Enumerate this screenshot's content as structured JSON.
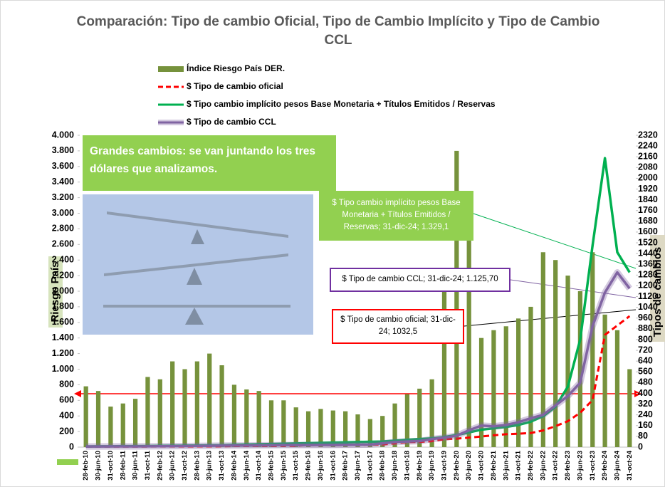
{
  "chart_data": {
    "type": "combo",
    "title": "Comparación: Tipo de cambio Oficial, Tipo de Cambio Implícito y Tipo de Cambio CCL",
    "y_label": "Riesgo País",
    "y2_label": "Tipos de cambios",
    "categories": [
      "28-feb-10",
      "30-jun-10",
      "31-oct-10",
      "28-feb-11",
      "30-jun-11",
      "31-oct-11",
      "29-feb-12",
      "30-jun-12",
      "31-oct-12",
      "28-feb-13",
      "30-jun-13",
      "31-oct-13",
      "28-feb-14",
      "30-jun-14",
      "31-oct-14",
      "28-feb-15",
      "30-jun-15",
      "31-oct-15",
      "29-feb-16",
      "30-jun-16",
      "31-oct-16",
      "28-feb-17",
      "30-jun-17",
      "31-oct-17",
      "28-feb-18",
      "30-jun-18",
      "31-oct-18",
      "28-feb-19",
      "30-jun-19",
      "31-oct-19",
      "29-feb-20",
      "30-jun-20",
      "31-oct-20",
      "28-feb-21",
      "30-jun-21",
      "31-oct-21",
      "28-feb-22",
      "30-jun-22",
      "31-oct-22",
      "28-feb-23",
      "30-jun-23",
      "31-oct-23",
      "29-feb-24",
      "30-jun-24",
      "31-oct-24"
    ],
    "series": [
      {
        "name": "Índice Riesgo País DER.",
        "type": "bar",
        "axis": "y",
        "color": "#76923c",
        "values": [
          780,
          720,
          520,
          560,
          620,
          900,
          870,
          1100,
          1000,
          1100,
          1200,
          1050,
          800,
          740,
          720,
          600,
          600,
          510,
          460,
          490,
          470,
          460,
          420,
          360,
          400,
          560,
          680,
          750,
          870,
          2300,
          3800,
          2700,
          1400,
          1500,
          1550,
          1650,
          1800,
          2500,
          2400,
          2200,
          2000,
          2500,
          1700,
          1500,
          1000
        ]
      },
      {
        "name": "$ Tipo de cambio oficial",
        "type": "line",
        "axis": "y2",
        "color": "#ff0000",
        "dashed": true,
        "values": [
          3.9,
          3.9,
          4,
          4.1,
          4.1,
          4.3,
          4.4,
          4.5,
          4.7,
          5,
          5.3,
          5.8,
          7.9,
          8.1,
          8.5,
          8.7,
          9.1,
          9.6,
          15.5,
          15,
          15.2,
          15.6,
          17,
          17.9,
          20,
          28,
          37,
          39,
          44,
          59,
          63,
          71,
          79,
          88,
          96,
          100,
          105,
          124,
          156,
          193,
          256,
          350,
          835,
          905,
          975
        ]
      },
      {
        "name": "$ Tipo cambio implícito pesos Base Monetaria + Títulos Emitidos / Reservas",
        "type": "line",
        "axis": "y2",
        "color": "#00b050",
        "values": [
          5,
          6,
          6,
          7,
          7,
          8,
          9,
          10,
          11,
          12,
          13,
          14,
          17,
          19,
          21,
          23,
          25,
          27,
          30,
          32,
          34,
          36,
          38,
          40,
          42,
          48,
          55,
          60,
          65,
          75,
          90,
          110,
          130,
          140,
          150,
          165,
          190,
          230,
          300,
          450,
          800,
          1500,
          2150,
          1450,
          1300
        ]
      },
      {
        "name": "$ Tipo de cambio CCL",
        "type": "line",
        "axis": "y2",
        "color": "#8064a2",
        "values": [
          4.5,
          4.8,
          5,
          5.2,
          5.5,
          6,
          6.5,
          7,
          8,
          9,
          10,
          11,
          12,
          12,
          13,
          14,
          15,
          15,
          15.5,
          16,
          16,
          17,
          18,
          19,
          28,
          38,
          42,
          45,
          60,
          70,
          85,
          125,
          160,
          155,
          165,
          185,
          215,
          240,
          310,
          380,
          480,
          900,
          1150,
          1300,
          1180
        ]
      }
    ],
    "ylim": [
      0,
      4000
    ],
    "yticks": [
      0,
      200,
      400,
      600,
      800,
      {
        "value": 1000,
        "label": "1.000"
      },
      {
        "value": 1200,
        "label": "1.200"
      },
      {
        "value": 1400,
        "label": "1.400"
      },
      {
        "value": 1600,
        "label": "1.600"
      },
      {
        "value": 1800,
        "label": "1.800"
      },
      {
        "value": 2000,
        "label": "2.000"
      },
      {
        "value": 2200,
        "label": "2.200"
      },
      {
        "value": 2400,
        "label": "2.400"
      },
      {
        "value": 2600,
        "label": "2.600"
      },
      {
        "value": 2800,
        "label": "2.800"
      },
      {
        "value": 3000,
        "label": "3.000"
      },
      {
        "value": 3200,
        "label": "3.200"
      },
      {
        "value": 3400,
        "label": "3.400"
      },
      {
        "value": 3600,
        "label": "3.600"
      },
      {
        "value": 3800,
        "label": "3.800"
      },
      {
        "value": 4000,
        "label": "4.000"
      }
    ],
    "y2lim": [
      0,
      2320
    ],
    "y2ticks": [
      0,
      80,
      160,
      240,
      320,
      400,
      480,
      560,
      640,
      720,
      800,
      880,
      960,
      1040,
      1120,
      1200,
      1280,
      1360,
      1440,
      1520,
      1600,
      1680,
      1760,
      1840,
      1920,
      2000,
      2080,
      2160,
      2240,
      2320
    ],
    "annotations": [
      "Grandes cambios: se van juntando los tres dólares que analizamos.",
      "$ Tipo cambio implícito pesos Base Monetaria + Títulos Emitidos / Reservas; 31-dic-24;  1.329,1",
      "$ Tipo de cambio CCL; 31-dic-24;  1.125,70",
      "$ Tipo de cambio oficial; 31-dic-24; 1032,5"
    ]
  }
}
